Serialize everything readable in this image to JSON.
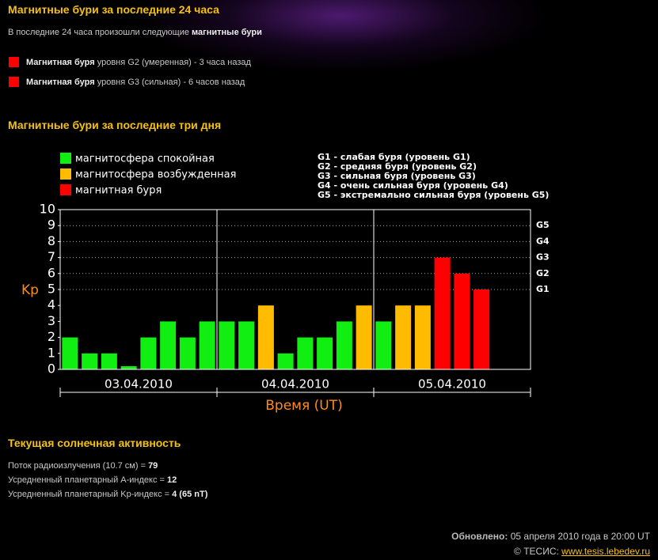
{
  "header": {
    "title": "Магнитные бури за последние 24 часа"
  },
  "recent": {
    "intro": "В последние 24 часа произошли следующие",
    "intro_bold": "магнитные бури",
    "items": [
      {
        "bold": "Магнитная буря",
        "text": "уровня G2 (умеренная) - 3 часа назад"
      },
      {
        "bold": "Магнитная буря",
        "text": "уровня G3 (сильная) - 6 часов назад"
      }
    ]
  },
  "three_days": {
    "title": "Магнитные бури за последние три дня"
  },
  "chart_data": {
    "type": "bar",
    "ylabel": "Kp",
    "xlabel": "Время (UT)",
    "categories": [
      null,
      null,
      null,
      null,
      null,
      null,
      null,
      null,
      null,
      null,
      null,
      null,
      null,
      null,
      null,
      null,
      null,
      null,
      null,
      null,
      null,
      null,
      null,
      null
    ],
    "day_labels": [
      "03.04.2010",
      "04.04.2010",
      "05.04.2010"
    ],
    "series": [
      {
        "name": "магнитосфера спокойная",
        "color": "#11ee11",
        "values": [
          2,
          1,
          1,
          0.2,
          2,
          3,
          2,
          3,
          3,
          3,
          null,
          1,
          2,
          2,
          3,
          null,
          3,
          null,
          null,
          null,
          null,
          null,
          null,
          null
        ]
      },
      {
        "name": "магнитосфера возбужденная",
        "color": "#ffbb00",
        "values": [
          null,
          null,
          null,
          null,
          null,
          null,
          null,
          null,
          null,
          null,
          4,
          null,
          null,
          null,
          null,
          4,
          null,
          4,
          4,
          null,
          null,
          null,
          null,
          null
        ]
      },
      {
        "name": "магнитная буря",
        "color": "#ff0000",
        "values": [
          null,
          null,
          null,
          null,
          null,
          null,
          null,
          null,
          null,
          null,
          null,
          null,
          null,
          null,
          null,
          null,
          null,
          null,
          null,
          7,
          6,
          5,
          null,
          null
        ]
      }
    ],
    "ylim": [
      0,
      10
    ],
    "yticks": [
      0,
      1,
      2,
      3,
      4,
      5,
      6,
      7,
      8,
      9,
      10
    ],
    "y2lim": [
      0,
      10
    ],
    "y2ticks": [
      {
        "value": 5,
        "label": "G1"
      },
      {
        "value": 6,
        "label": "G2"
      },
      {
        "value": 7,
        "label": "G3"
      },
      {
        "value": 8,
        "label": "G4"
      },
      {
        "value": 9,
        "label": "G5"
      }
    ],
    "grid": true,
    "g_legend": [
      "G1 - слабая буря (уровень G1)",
      "G2 - средняя буря (уровень G2)",
      "G3 - сильная буря (уровень G3)",
      "G4 - очень сильная буря (уровень G4)",
      "G5 - экстремально сильная буря (уровень G5)"
    ]
  },
  "activity": {
    "title": "Текущая солнечная активность",
    "rows": [
      {
        "label": "Поток радиоизлучения (10.7 см) =",
        "value": "79"
      },
      {
        "label": "Усредненный планетарный А-индекс =",
        "value": "12"
      },
      {
        "label": "Усредненный планетарный Kp-индекс =",
        "value": "4 (65 nT)"
      }
    ]
  },
  "footer": {
    "updated_label": "Обновлено:",
    "updated": "05 апреля 2010 года в 20:00 UT",
    "copyright": "© ТЕСИС:",
    "link": "www.tesis.lebedev.ru"
  }
}
